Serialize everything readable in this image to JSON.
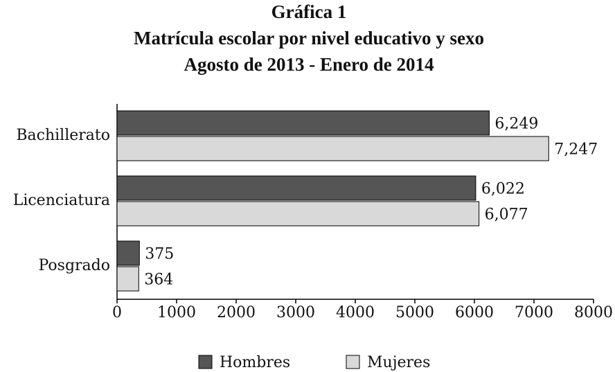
{
  "chart_data": {
    "type": "bar",
    "orientation": "horizontal",
    "title": [
      "Gráfica 1",
      "Matrícula escolar por nivel educativo y sexo",
      "Agosto de 2013 - Enero de 2014"
    ],
    "categories": [
      "Bachillerato",
      "Licenciatura",
      "Posgrado"
    ],
    "series": [
      {
        "name": "Hombres",
        "color": "#555555",
        "values": [
          6249,
          6022,
          375
        ],
        "value_labels": [
          "6,249",
          "6,022",
          "375"
        ]
      },
      {
        "name": "Mujeres",
        "color": "#d9d9d9",
        "values": [
          7247,
          6077,
          364
        ],
        "value_labels": [
          "7,247",
          "6,077",
          "364"
        ]
      }
    ],
    "xlim": [
      0,
      8000
    ],
    "xticks": [
      0,
      1000,
      2000,
      3000,
      4000,
      5000,
      6000,
      7000,
      8000
    ],
    "legend": "bottom"
  }
}
